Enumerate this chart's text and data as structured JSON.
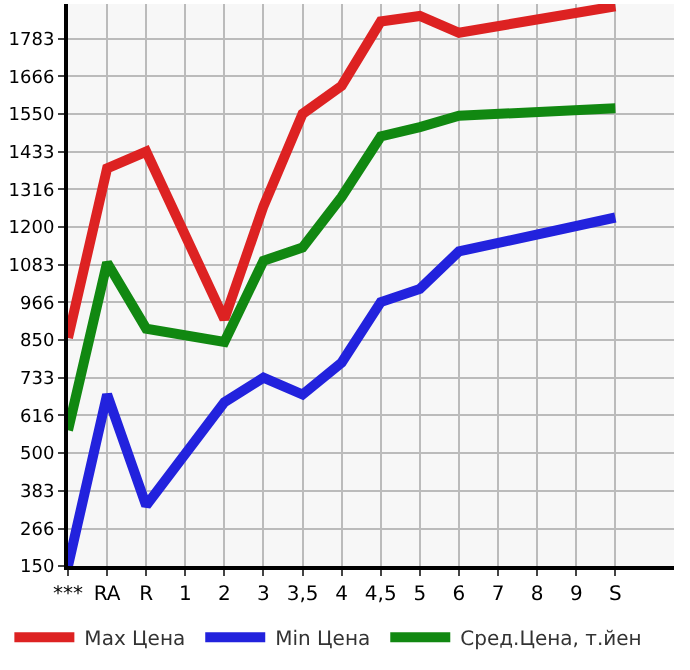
{
  "chart_data": {
    "type": "line",
    "categories": [
      "***",
      "RA",
      "R",
      "1",
      "2",
      "3",
      "3,5",
      "4",
      "4,5",
      "5",
      "6",
      "7",
      "8",
      "9",
      "S",
      null
    ],
    "series": [
      {
        "name": "Max Цена",
        "color": "#dd2222",
        "values": [
          856,
          1381,
          1433,
          null,
          914,
          1264,
          1550,
          1637,
          1836,
          1853,
          1801,
          null,
          null,
          null,
          1883,
          null
        ]
      },
      {
        "name": "Min Цена",
        "color": "#2222dd",
        "values": [
          150,
          681,
          337,
          null,
          657,
          733,
          681,
          780,
          967,
          1008,
          1124,
          null,
          null,
          null,
          1229,
          null
        ]
      },
      {
        "name": "Сред.Цена, т.йен",
        "color": "#118811",
        "values": [
          570,
          1089,
          885,
          null,
          844,
          1095,
          1136,
          1293,
          1480,
          1509,
          1544,
          null,
          null,
          null,
          1567,
          null
        ]
      }
    ],
    "ylim": [
      150,
      1890
    ],
    "yticks": [
      150,
      266,
      383,
      500,
      616,
      733,
      850,
      966,
      1083,
      1200,
      1316,
      1433,
      1550,
      1666,
      1783
    ],
    "grid": true,
    "legend": "bottom",
    "marker": "none",
    "line_style": "solid"
  }
}
